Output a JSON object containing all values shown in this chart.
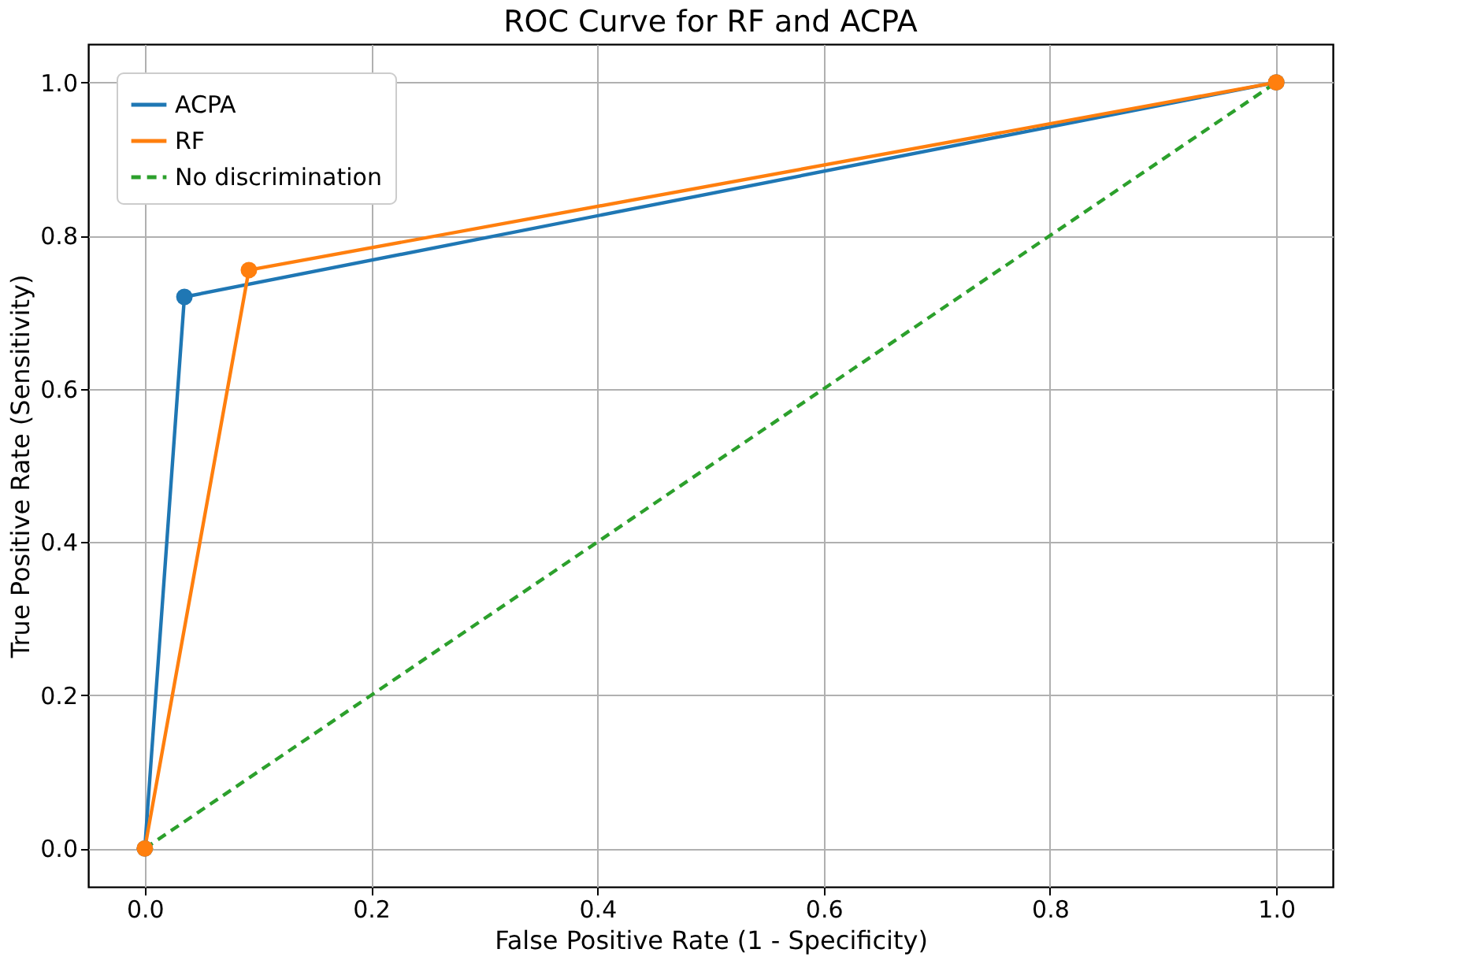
{
  "chart_data": {
    "type": "line",
    "title": "ROC Curve for RF and ACPA",
    "xlabel": "False Positive Rate (1 - Specificity)",
    "ylabel": "True Positive Rate (Sensitivity)",
    "xlim": [
      -0.05,
      1.05
    ],
    "ylim": [
      -0.05,
      1.05
    ],
    "xticks": [
      {
        "value": 0,
        "label": "0.0"
      },
      {
        "value": 0.2,
        "label": "0.2"
      },
      {
        "value": 0.4,
        "label": "0.4"
      },
      {
        "value": 0.6,
        "label": "0.6"
      },
      {
        "value": 0.8,
        "label": "0.8"
      },
      {
        "value": 1,
        "label": "1.0"
      }
    ],
    "yticks": [
      {
        "value": 0,
        "label": "0.0"
      },
      {
        "value": 0.2,
        "label": "0.2"
      },
      {
        "value": 0.4,
        "label": "0.4"
      },
      {
        "value": 0.6,
        "label": "0.6"
      },
      {
        "value": 0.8,
        "label": "0.8"
      },
      {
        "value": 1,
        "label": "1.0"
      }
    ],
    "grid": true,
    "legend": "top left",
    "series": [
      {
        "name": "ACPA",
        "color": "#1f77b4",
        "x": [
          0,
          0.035,
          1
        ],
        "values": [
          0,
          0.72,
          1
        ],
        "marker": "circle",
        "line_style": "solid"
      },
      {
        "name": "RF",
        "color": "#ff7f0e",
        "x": [
          0,
          0.092,
          1
        ],
        "values": [
          0,
          0.755,
          1
        ],
        "marker": "circle",
        "line_style": "solid"
      },
      {
        "name": "No discrimination",
        "color": "#2ca02c",
        "x": [
          0,
          1
        ],
        "values": [
          0,
          1
        ],
        "marker": "none",
        "line_style": "dashed"
      }
    ]
  }
}
